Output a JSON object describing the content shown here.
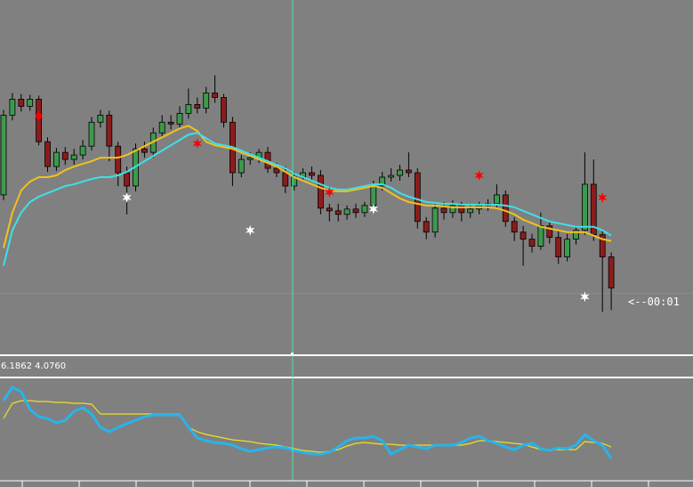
{
  "chart_data": [
    {
      "type": "candlestick",
      "bull_color": "#3c9a4c",
      "bear_color": "#8c1c1c",
      "ylim": [
        0,
        400
      ],
      "open": [
        180,
        270,
        288,
        280,
        288,
        240,
        212,
        228,
        220,
        225,
        235,
        262,
        270,
        235,
        205,
        190,
        232,
        228,
        250,
        262,
        260,
        272,
        282,
        278,
        295,
        290,
        262,
        205,
        220,
        222,
        228,
        210,
        205,
        190,
        200,
        205,
        202,
        165,
        162,
        158,
        164,
        160,
        168,
        190,
        200,
        202,
        208,
        205,
        150,
        138,
        165,
        160,
        168,
        160,
        164,
        168,
        170,
        180,
        150,
        138,
        130,
        122,
        145,
        132,
        110,
        130,
        140,
        192,
        135,
        110
      ],
      "close": [
        270,
        288,
        280,
        288,
        240,
        212,
        228,
        220,
        225,
        235,
        262,
        270,
        235,
        205,
        190,
        232,
        228,
        250,
        262,
        260,
        272,
        282,
        278,
        295,
        290,
        262,
        205,
        220,
        222,
        228,
        210,
        205,
        190,
        200,
        205,
        202,
        165,
        162,
        158,
        164,
        160,
        168,
        190,
        200,
        202,
        208,
        205,
        150,
        138,
        165,
        160,
        168,
        160,
        164,
        168,
        170,
        180,
        150,
        138,
        130,
        122,
        145,
        132,
        110,
        130,
        140,
        192,
        135,
        110,
        75
      ],
      "high": [
        276,
        295,
        294,
        293,
        292,
        245,
        233,
        234,
        232,
        242,
        268,
        276,
        275,
        240,
        212,
        238,
        240,
        256,
        270,
        270,
        280,
        300,
        290,
        302,
        315,
        294,
        268,
        225,
        228,
        232,
        234,
        216,
        212,
        206,
        210,
        212,
        208,
        170,
        170,
        168,
        170,
        172,
        196,
        206,
        210,
        214,
        228,
        210,
        155,
        170,
        172,
        174,
        172,
        170,
        172,
        175,
        192,
        185,
        155,
        145,
        136,
        160,
        150,
        140,
        136,
        145,
        228,
        220,
        140,
        115
      ],
      "low": [
        174,
        264,
        274,
        275,
        236,
        206,
        207,
        214,
        214,
        220,
        230,
        256,
        218,
        190,
        158,
        184,
        222,
        222,
        246,
        254,
        255,
        266,
        272,
        272,
        284,
        256,
        190,
        200,
        214,
        216,
        205,
        200,
        182,
        185,
        195,
        196,
        158,
        150,
        150,
        152,
        154,
        155,
        162,
        185,
        195,
        196,
        200,
        142,
        130,
        132,
        152,
        154,
        150,
        154,
        158,
        162,
        165,
        144,
        128,
        100,
        115,
        118,
        125,
        102,
        105,
        124,
        135,
        128,
        48,
        50
      ],
      "lines": [
        {
          "color": "#f2c21b",
          "values": [
            120,
            160,
            185,
            195,
            200,
            200,
            202,
            208,
            212,
            215,
            218,
            222,
            222,
            222,
            225,
            230,
            235,
            240,
            245,
            250,
            255,
            258,
            252,
            240,
            236,
            234,
            232,
            228,
            224,
            220,
            216,
            212,
            206,
            200,
            196,
            192,
            188,
            185,
            184,
            184,
            186,
            188,
            190,
            188,
            182,
            176,
            172,
            170,
            168,
            168,
            167,
            166,
            166,
            166,
            166,
            166,
            165,
            162,
            158,
            152,
            148,
            144,
            142,
            140,
            138,
            138,
            138,
            134,
            130,
            128
          ]
        },
        {
          "color": "#3ee0e8",
          "values": [
            100,
            140,
            160,
            172,
            178,
            182,
            186,
            190,
            192,
            195,
            198,
            200,
            200,
            202,
            206,
            212,
            218,
            224,
            230,
            236,
            242,
            248,
            250,
            244,
            238,
            236,
            234,
            230,
            226,
            222,
            218,
            214,
            210,
            204,
            200,
            196,
            192,
            188,
            186,
            186,
            188,
            190,
            192,
            192,
            188,
            182,
            178,
            175,
            172,
            171,
            170,
            170,
            169,
            169,
            169,
            169,
            169,
            168,
            166,
            162,
            158,
            154,
            150,
            148,
            146,
            144,
            144,
            144,
            140,
            134
          ]
        }
      ],
      "signals": [
        {
          "color": "#ff0000",
          "index": [
            4,
            22,
            37,
            54,
            68
          ],
          "values": [
            269,
            238,
            183,
            202,
            177
          ]
        },
        {
          "color": "#ffffff",
          "index": [
            14,
            28,
            42,
            66
          ],
          "values": [
            177,
            140,
            164,
            65
          ]
        }
      ],
      "level": 69,
      "level_label": "<--00:01"
    },
    {
      "type": "line",
      "label": "6.1862 4.0760",
      "ylim": [
        0,
        120
      ],
      "series": [
        {
          "color": "#f0e020",
          "values": [
            75,
            92,
            95,
            95,
            94,
            94,
            93,
            93,
            92,
            92,
            91,
            80,
            80,
            80,
            80,
            80,
            80,
            80,
            80,
            80,
            80,
            65,
            60,
            57,
            55,
            53,
            51,
            50,
            49,
            47,
            46,
            45,
            43,
            41,
            39,
            38,
            37,
            38,
            40,
            44,
            47,
            48,
            47,
            46,
            46,
            45,
            45,
            45,
            45,
            45,
            45,
            45,
            45,
            47,
            50,
            50,
            49,
            48,
            47,
            46,
            43,
            40,
            40,
            40,
            40,
            40,
            49,
            48,
            47,
            43
          ]
        },
        {
          "color": "#27b4ea",
          "values": [
            95,
            110,
            105,
            85,
            77,
            75,
            70,
            73,
            83,
            87,
            80,
            65,
            60,
            65,
            69,
            73,
            77,
            79,
            79,
            79,
            79,
            65,
            53,
            50,
            48,
            47,
            45,
            41,
            38,
            40,
            42,
            43,
            42,
            39,
            37,
            35,
            35,
            37,
            43,
            50,
            53,
            53,
            55,
            50,
            35,
            40,
            45,
            43,
            41,
            45,
            45,
            45,
            48,
            53,
            55,
            50,
            47,
            43,
            40,
            45,
            47,
            41,
            39,
            42,
            41,
            45,
            57,
            50,
            45,
            30
          ]
        }
      ]
    }
  ]
}
